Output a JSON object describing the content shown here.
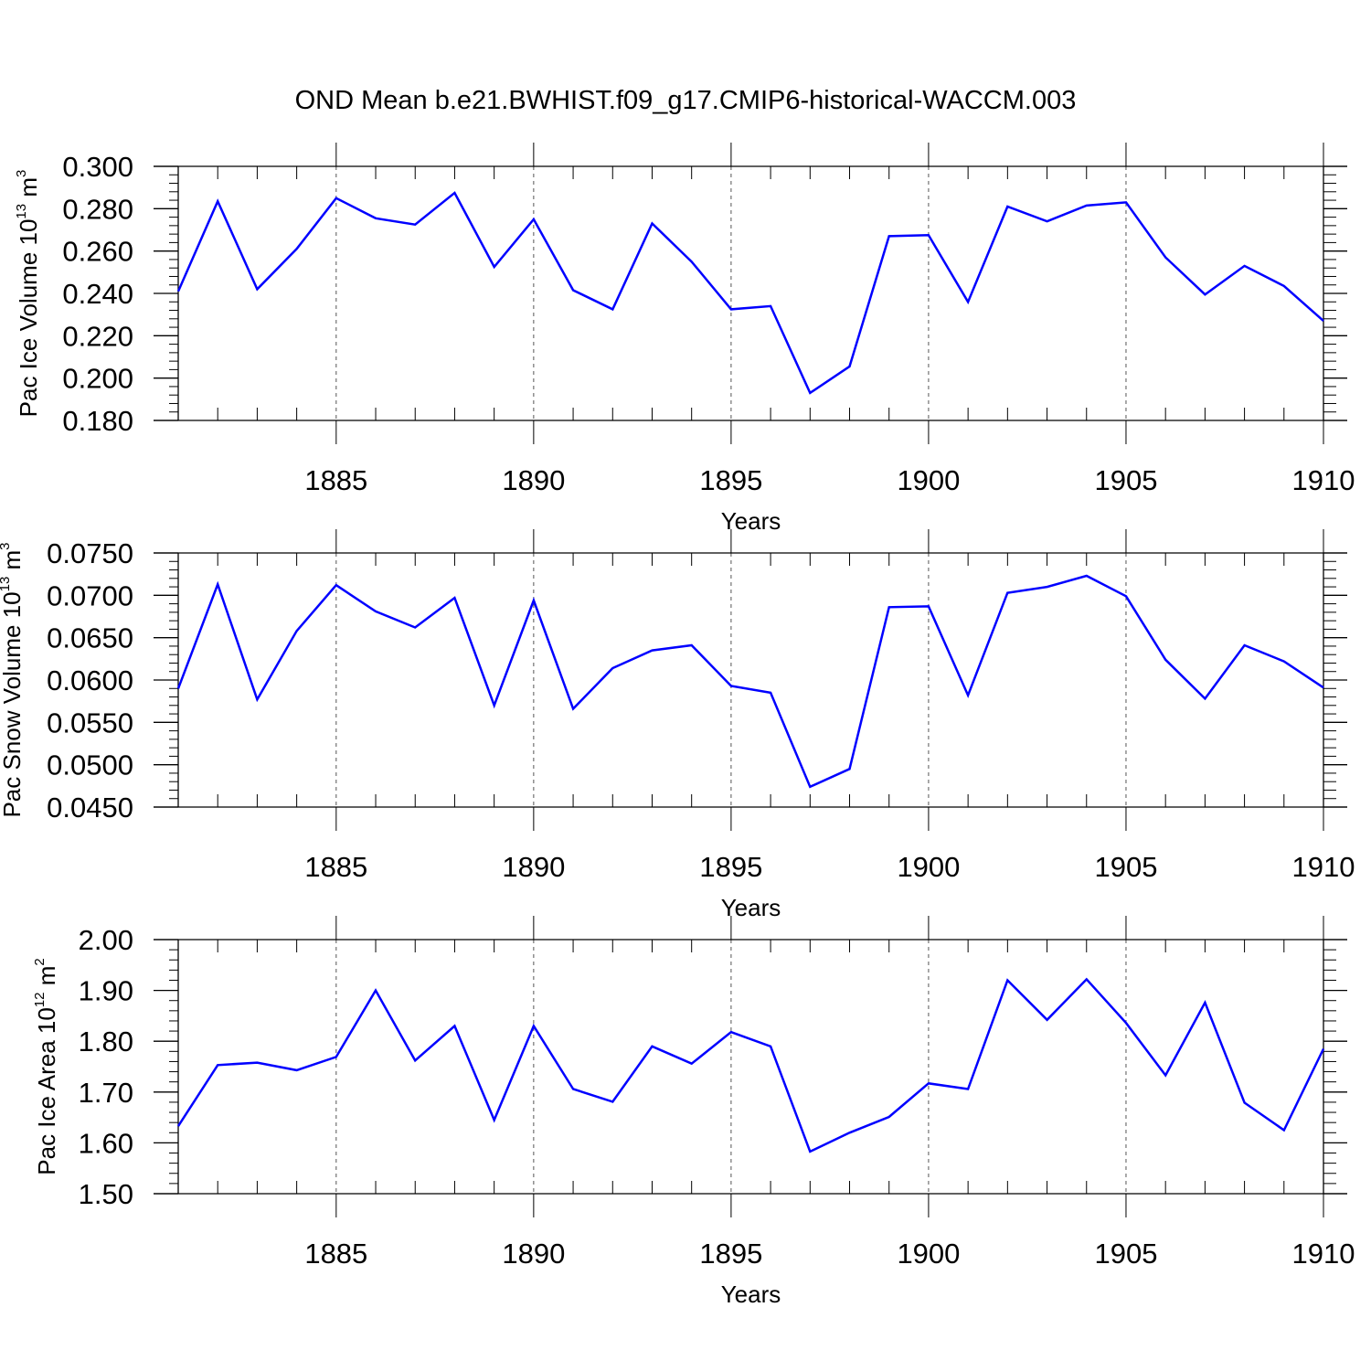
{
  "title": "OND Mean b.e21.BWHIST.f09_g17.CMIP6-historical-WACCM.003",
  "colors": {
    "series": "#0000ff",
    "axis": "#000000",
    "grid": "#555555"
  },
  "chart_data": [
    {
      "type": "line",
      "title": "OND Mean b.e21.BWHIST.f09_g17.CMIP6-historical-WACCM.003",
      "xlabel": "Years",
      "ylabel": {
        "prefix": "Pac Ice Volume 10",
        "exponent": "13",
        "unit": " m",
        "unit_exponent": "3"
      },
      "xlim": [
        1881,
        1910
      ],
      "ylim": [
        0.18,
        0.3
      ],
      "xticks": [
        1885,
        1890,
        1895,
        1900,
        1905,
        1910
      ],
      "yticks": [
        "0.180",
        "0.200",
        "0.220",
        "0.240",
        "0.260",
        "0.280",
        "0.300"
      ],
      "ytick_values": [
        0.18,
        0.2,
        0.22,
        0.24,
        0.26,
        0.28,
        0.3
      ],
      "grid": "vertical dashed at major x ticks",
      "x": [
        1881,
        1882,
        1883,
        1884,
        1885,
        1886,
        1887,
        1888,
        1889,
        1890,
        1891,
        1892,
        1893,
        1894,
        1895,
        1896,
        1897,
        1898,
        1899,
        1900,
        1901,
        1902,
        1903,
        1904,
        1905,
        1906,
        1907,
        1908,
        1909,
        1910
      ],
      "series": [
        {
          "name": "Pac Ice Volume",
          "values": [
            0.241,
            0.2835,
            0.242,
            0.261,
            0.285,
            0.2755,
            0.2725,
            0.2875,
            0.2525,
            0.275,
            0.2415,
            0.2325,
            0.273,
            0.255,
            0.2325,
            0.234,
            0.193,
            0.2055,
            0.267,
            0.2675,
            0.236,
            0.281,
            0.274,
            0.2815,
            0.283,
            0.257,
            0.2395,
            0.253,
            0.2435,
            0.227
          ]
        }
      ]
    },
    {
      "type": "line",
      "xlabel": "Years",
      "ylabel": {
        "prefix": "Pac Snow Volume 10",
        "exponent": "13",
        "unit": " m",
        "unit_exponent": "3"
      },
      "xlim": [
        1881,
        1910
      ],
      "ylim": [
        0.045,
        0.075
      ],
      "xticks": [
        1885,
        1890,
        1895,
        1900,
        1905,
        1910
      ],
      "yticks": [
        "0.0450",
        "0.0500",
        "0.0550",
        "0.0600",
        "0.0650",
        "0.0700",
        "0.0750"
      ],
      "ytick_values": [
        0.045,
        0.05,
        0.055,
        0.06,
        0.065,
        0.07,
        0.075
      ],
      "grid": "vertical dashed at major x ticks",
      "x": [
        1881,
        1882,
        1883,
        1884,
        1885,
        1886,
        1887,
        1888,
        1889,
        1890,
        1891,
        1892,
        1893,
        1894,
        1895,
        1896,
        1897,
        1898,
        1899,
        1900,
        1901,
        1902,
        1903,
        1904,
        1905,
        1906,
        1907,
        1908,
        1909,
        1910
      ],
      "series": [
        {
          "name": "Pac Snow Volume",
          "values": [
            0.059,
            0.0713,
            0.0577,
            0.0658,
            0.0712,
            0.0681,
            0.0662,
            0.0697,
            0.057,
            0.0694,
            0.0566,
            0.0614,
            0.0635,
            0.0641,
            0.0593,
            0.0585,
            0.0474,
            0.0495,
            0.0686,
            0.0687,
            0.0582,
            0.0703,
            0.071,
            0.0723,
            0.0699,
            0.0624,
            0.0578,
            0.0641,
            0.0622,
            0.0591
          ]
        }
      ]
    },
    {
      "type": "line",
      "xlabel": "Years",
      "ylabel": {
        "prefix": "Pac Ice Area 10",
        "exponent": "12",
        "unit": " m",
        "unit_exponent": "2"
      },
      "xlim": [
        1881,
        1910
      ],
      "ylim": [
        1.5,
        2.0
      ],
      "xticks": [
        1885,
        1890,
        1895,
        1900,
        1905,
        1910
      ],
      "yticks": [
        "1.50",
        "1.60",
        "1.70",
        "1.80",
        "1.90",
        "2.00"
      ],
      "ytick_values": [
        1.5,
        1.6,
        1.7,
        1.8,
        1.9,
        2.0
      ],
      "grid": "vertical dashed at major x ticks",
      "x": [
        1881,
        1882,
        1883,
        1884,
        1885,
        1886,
        1887,
        1888,
        1889,
        1890,
        1891,
        1892,
        1893,
        1894,
        1895,
        1896,
        1897,
        1898,
        1899,
        1900,
        1901,
        1902,
        1903,
        1904,
        1905,
        1906,
        1907,
        1908,
        1909,
        1910
      ],
      "series": [
        {
          "name": "Pac Ice Area",
          "values": [
            1.633,
            1.753,
            1.758,
            1.743,
            1.769,
            1.9,
            1.762,
            1.83,
            1.645,
            1.83,
            1.706,
            1.681,
            1.79,
            1.756,
            1.818,
            1.79,
            1.583,
            1.62,
            1.651,
            1.717,
            1.706,
            1.92,
            1.842,
            1.922,
            1.836,
            1.733,
            1.876,
            1.679,
            1.625,
            1.785
          ]
        }
      ]
    }
  ]
}
